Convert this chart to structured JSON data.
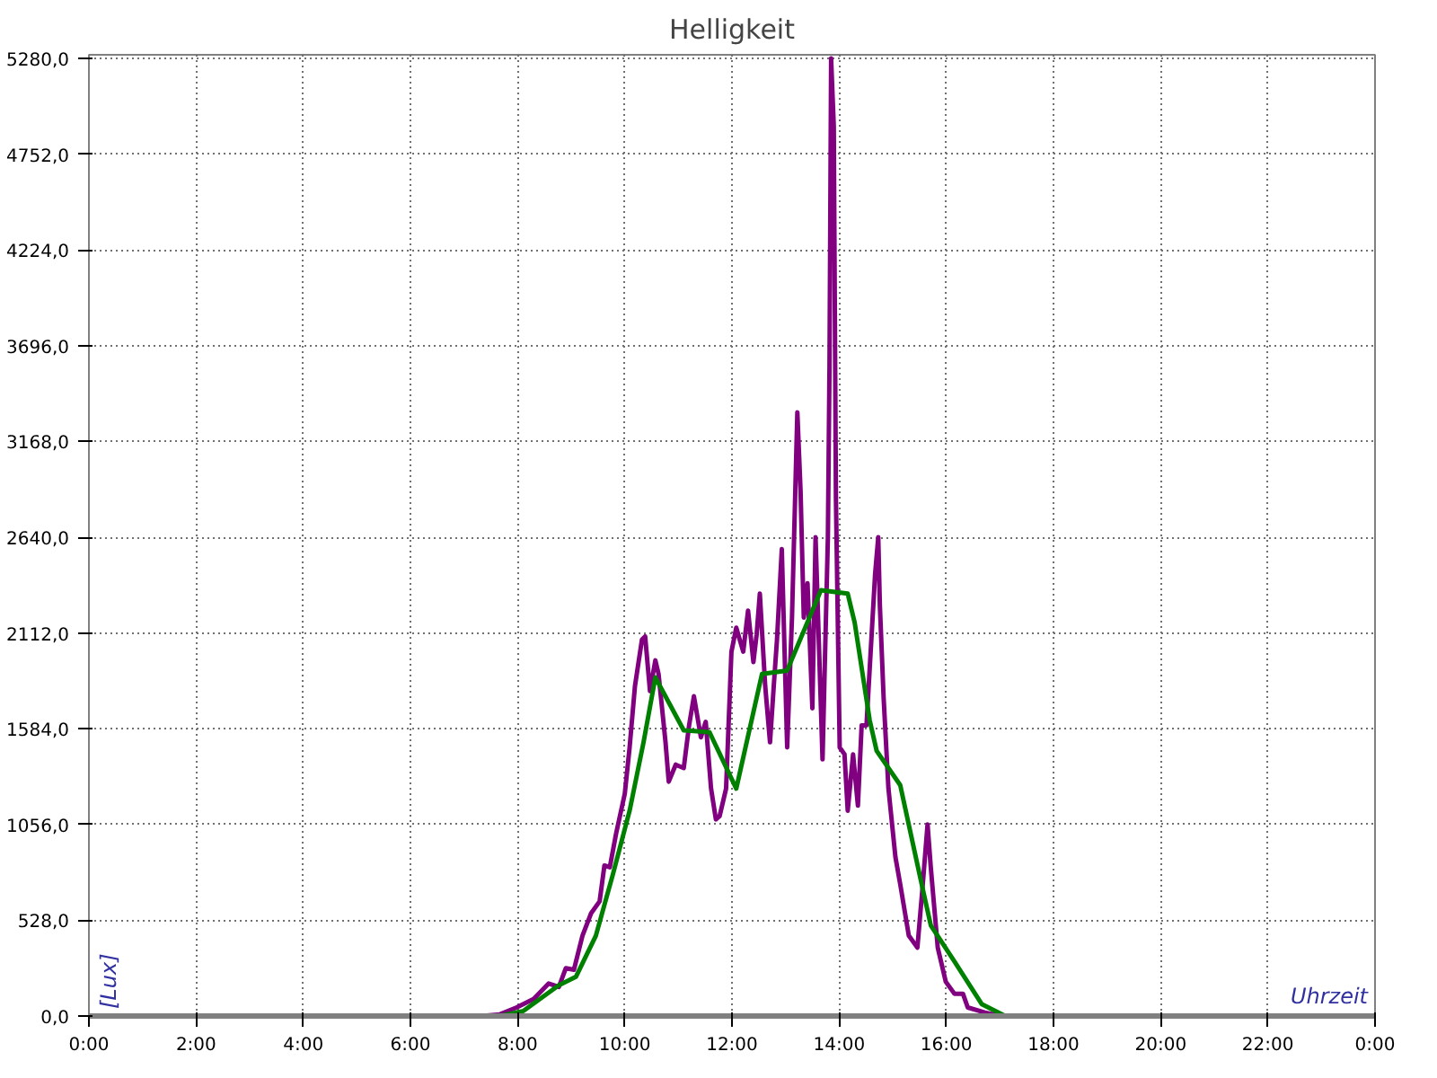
{
  "chart_data": {
    "type": "line",
    "title": "Helligkeit",
    "xlabel": "Uhrzeit",
    "ylabel": "[Lux]",
    "xlim": [
      0,
      24
    ],
    "ylim": [
      0,
      5300
    ],
    "xticks": [
      {
        "value": 0,
        "label": "0:00"
      },
      {
        "value": 2,
        "label": "2:00"
      },
      {
        "value": 4,
        "label": "4:00"
      },
      {
        "value": 6,
        "label": "6:00"
      },
      {
        "value": 8,
        "label": "8:00"
      },
      {
        "value": 10,
        "label": "10:00"
      },
      {
        "value": 12,
        "label": "12:00"
      },
      {
        "value": 14,
        "label": "14:00"
      },
      {
        "value": 16,
        "label": "16:00"
      },
      {
        "value": 18,
        "label": "18:00"
      },
      {
        "value": 20,
        "label": "20:00"
      },
      {
        "value": 22,
        "label": "22:00"
      },
      {
        "value": 24,
        "label": "0:00"
      }
    ],
    "yticks": [
      {
        "value": 0,
        "label": "0,0"
      },
      {
        "value": 528,
        "label": "528,0"
      },
      {
        "value": 1056,
        "label": "1056,0"
      },
      {
        "value": 1584,
        "label": "1584,0"
      },
      {
        "value": 2112,
        "label": "2112,0"
      },
      {
        "value": 2640,
        "label": "2640,0"
      },
      {
        "value": 3168,
        "label": "3168,0"
      },
      {
        "value": 3696,
        "label": "3696,0"
      },
      {
        "value": 4224,
        "label": "4224,0"
      },
      {
        "value": 4752,
        "label": "4752,0"
      },
      {
        "value": 5280,
        "label": "5280,0"
      }
    ],
    "grid": true,
    "marker": "none",
    "line_style": "solid",
    "series": [
      {
        "color": "#800080",
        "x": [
          0,
          7.32,
          7.67,
          7.98,
          8.3,
          8.58,
          8.77,
          8.9,
          9.05,
          9.21,
          9.37,
          9.53,
          9.62,
          9.72,
          9.84,
          10.0,
          10.09,
          10.19,
          10.32,
          10.38,
          10.47,
          10.57,
          10.63,
          10.76,
          10.82,
          10.95,
          11.1,
          11.2,
          11.29,
          11.42,
          11.51,
          11.61,
          11.7,
          11.77,
          11.89,
          11.99,
          12.08,
          12.21,
          12.3,
          12.4,
          12.46,
          12.52,
          12.62,
          12.71,
          12.78,
          12.84,
          12.93,
          13.03,
          13.12,
          13.22,
          13.28,
          13.34,
          13.41,
          13.5,
          13.56,
          13.66,
          13.69,
          13.79,
          13.82,
          13.85,
          13.9,
          13.94,
          14.01,
          14.1,
          14.16,
          14.26,
          14.35,
          14.42,
          14.51,
          14.67,
          14.73,
          14.76,
          14.83,
          14.92,
          15.05,
          15.14,
          15.3,
          15.46,
          15.55,
          15.65,
          15.71,
          15.84,
          15.99,
          16.15,
          16.31,
          16.4,
          16.72,
          17.03,
          24
        ],
        "values": [
          0,
          0,
          9,
          47,
          94,
          179,
          160,
          264,
          255,
          443,
          566,
          632,
          830,
          820,
          1009,
          1226,
          1481,
          1820,
          2075,
          2093,
          1792,
          1961,
          1886,
          1509,
          1292,
          1386,
          1367,
          1603,
          1763,
          1537,
          1622,
          1254,
          1084,
          1103,
          1254,
          2009,
          2141,
          2009,
          2235,
          1952,
          2103,
          2329,
          1820,
          1509,
          1820,
          2075,
          2574,
          1481,
          2197,
          3329,
          2895,
          2197,
          2386,
          1697,
          2640,
          1697,
          1415,
          2640,
          3583,
          5280,
          4904,
          2857,
          1481,
          1443,
          1132,
          1443,
          1160,
          1603,
          1603,
          2433,
          2640,
          2263,
          1754,
          1254,
          877,
          726,
          443,
          377,
          688,
          1056,
          820,
          377,
          189,
          123,
          123,
          47,
          19,
          0,
          0
        ]
      },
      {
        "color": "#008000",
        "x": [
          0,
          7.67,
          8.11,
          8.77,
          9.09,
          9.46,
          9.78,
          10.09,
          10.35,
          10.57,
          11.1,
          11.58,
          12.08,
          12.56,
          13.03,
          13.66,
          14.16,
          14.29,
          14.57,
          14.7,
          15.14,
          15.52,
          15.71,
          16.15,
          16.66,
          17.1,
          24
        ],
        "values": [
          0,
          0,
          28,
          170,
          217,
          443,
          783,
          1132,
          1509,
          1867,
          1575,
          1565,
          1254,
          1886,
          1905,
          2348,
          2329,
          2169,
          1631,
          1462,
          1273,
          754,
          500,
          302,
          66,
          0,
          0
        ]
      }
    ]
  }
}
